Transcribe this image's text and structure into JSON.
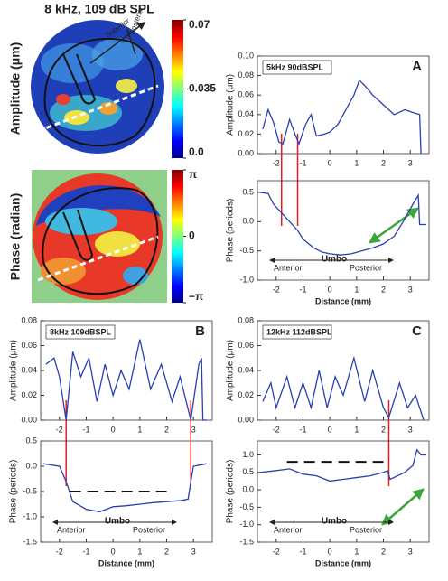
{
  "chart_data": [
    {
      "type": "image",
      "title": "8 kHz, 109 dB SPL",
      "y_label": "Amplitude (μm)",
      "annotations": [
        "Superior",
        "Posterior"
      ],
      "clim": [
        0,
        0.07
      ],
      "colorbar_ticks": [
        {
          "value": 0,
          "label": "0.0"
        },
        0.035,
        0.07
      ]
    },
    {
      "type": "image",
      "y_label": "Phase (radian)",
      "clim": [
        -3.14159,
        3.14159
      ],
      "colorbar_ticks": [
        {
          "value": -3.14159,
          "label": "−π"
        },
        0,
        {
          "value": 3.14159,
          "label": "π"
        }
      ]
    },
    {
      "type": "line",
      "panel_label": "A",
      "legend_text": "5kHz 90dBSPL",
      "y_label": "Amplitude (μm)",
      "color": "#2a3fb0",
      "x": [
        -2.5,
        -2.3,
        -2.1,
        -1.9,
        -1.75,
        -1.5,
        -1.3,
        -1.15,
        -0.9,
        -0.7,
        -0.5,
        -0.2,
        0,
        0.3,
        0.6,
        0.9,
        1.1,
        1.3,
        1.6,
        2.0,
        2.4,
        2.8,
        3.1,
        3.35,
        3.4
      ],
      "values": [
        0.025,
        0.045,
        0.032,
        0.012,
        0.01,
        0.035,
        0.02,
        0.01,
        0.03,
        0.04,
        0.018,
        0.02,
        0.022,
        0.03,
        0.045,
        0.06,
        0.075,
        0.07,
        0.06,
        0.05,
        0.04,
        0.045,
        0.042,
        0.04,
        0.0
      ],
      "xlim": [
        -2.7,
        3.7
      ],
      "xticks": [
        -2,
        -1,
        0,
        1,
        2,
        3
      ],
      "ylim": [
        0,
        0.1
      ],
      "yticks": [
        {
          "value": 0,
          "label": "0.00"
        },
        0.02,
        0.04,
        0.06,
        0.08,
        {
          "value": 0.1,
          "label": "0.10"
        }
      ],
      "vlines": [
        -1.8,
        -1.2
      ],
      "vline_color": "#e02020"
    },
    {
      "type": "line",
      "y_label": "Phase (periods)",
      "x_label": "Distance (mm)",
      "color": "#2a3fb0",
      "annotations": [
        "Anterior",
        "Umbo",
        "Posterior"
      ],
      "x": [
        -2.6,
        -2.3,
        -2.1,
        -1.8,
        -1.5,
        -1.2,
        -1,
        -0.6,
        -0.3,
        0,
        0.4,
        0.8,
        1.2,
        1.6,
        2.0,
        2.4,
        2.8,
        3.1,
        3.3,
        3.35,
        3.6
      ],
      "values": [
        0.5,
        0.48,
        0.3,
        0.15,
        0.0,
        -0.15,
        -0.3,
        -0.45,
        -0.52,
        -0.55,
        -0.57,
        -0.55,
        -0.5,
        -0.45,
        -0.38,
        -0.25,
        0.05,
        0.3,
        0.45,
        -0.05,
        -0.05
      ],
      "xlim": [
        -2.7,
        3.7
      ],
      "xticks": [
        -2,
        -1,
        0,
        1,
        2,
        3
      ],
      "ylim": [
        -1.0,
        0.7
      ],
      "yticks": [
        {
          "value": -1,
          "label": "-1.0"
        },
        -0.5,
        {
          "value": 0,
          "label": "0.0"
        },
        0.5
      ]
    },
    {
      "type": "line",
      "panel_label": "B",
      "legend_text": "8kHz 109dBSPL",
      "y_label": "Amplitude (μm)",
      "color": "#2a3fb0",
      "x": [
        -2.5,
        -2.2,
        -2.0,
        -1.75,
        -1.5,
        -1.2,
        -0.9,
        -0.6,
        -0.3,
        0,
        0.3,
        0.6,
        1.0,
        1.4,
        1.8,
        2.2,
        2.5,
        2.9,
        3.2,
        3.3,
        3.35,
        3.5
      ],
      "values": [
        0.045,
        0.05,
        0.035,
        0,
        0.055,
        0.035,
        0.05,
        0.015,
        0.045,
        0.02,
        0.04,
        0.025,
        0.065,
        0.025,
        0.045,
        0.015,
        0.035,
        0,
        0.045,
        0.05,
        0,
        0
      ],
      "xlim": [
        -2.7,
        3.7
      ],
      "xticks": [
        -2,
        -1,
        0,
        1,
        2,
        3
      ],
      "ylim": [
        0,
        0.08
      ],
      "yticks": [
        {
          "value": 0,
          "label": "0.00"
        },
        0.02,
        0.04,
        0.06,
        0.08
      ],
      "vlines": [
        -1.75,
        2.9
      ],
      "vline_color": "#e02020"
    },
    {
      "type": "line",
      "y_label": "Phase (periods)",
      "x_label": "Distance (mm)",
      "color": "#2a3fb0",
      "annotations": [
        "Anterior",
        "Umbo",
        "Posterior"
      ],
      "x": [
        -2.6,
        -2.0,
        -1.75,
        -1.5,
        -1.0,
        -0.5,
        0,
        0.5,
        1.0,
        1.5,
        2.0,
        2.5,
        2.8,
        2.9,
        3.0,
        3.5
      ],
      "values": [
        0.05,
        0,
        -0.3,
        -0.7,
        -0.85,
        -0.9,
        -0.8,
        -0.78,
        -0.75,
        -0.72,
        -0.7,
        -0.68,
        -0.65,
        -0.3,
        0.0,
        0.05
      ],
      "xlim": [
        -2.7,
        3.7
      ],
      "xticks": [
        -2,
        -1,
        0,
        1,
        2,
        3
      ],
      "ylim": [
        -1.5,
        0.5
      ],
      "yticks": [
        {
          "value": -1.5,
          "label": "-1.5"
        },
        {
          "value": -1,
          "label": "-1.0"
        },
        -0.5,
        {
          "value": 0,
          "label": "0.0"
        },
        0.5
      ],
      "reference_level": -0.5,
      "reference_x": [
        -1.6,
        2.0
      ]
    },
    {
      "type": "line",
      "panel_label": "C",
      "legend_text": "12kHz 112dBSPL",
      "y_label": "Amplitude (μm)",
      "color": "#2a3fb0",
      "x": [
        -2.5,
        -2.2,
        -2.0,
        -1.6,
        -1.3,
        -1.0,
        -0.7,
        -0.4,
        -0.1,
        0.2,
        0.5,
        0.9,
        1.3,
        1.6,
        2.0,
        2.2,
        2.6,
        2.9,
        3.2,
        3.5
      ],
      "values": [
        0.015,
        0.03,
        0.01,
        0.035,
        0.01,
        0.03,
        0.01,
        0.04,
        0.01,
        0.035,
        0.02,
        0.05,
        0.015,
        0.04,
        0.01,
        0.002,
        0.03,
        0.01,
        0.02,
        0
      ],
      "xlim": [
        -2.7,
        3.7
      ],
      "xticks": [
        -2,
        -1,
        0,
        1,
        2,
        3
      ],
      "ylim": [
        0,
        0.08
      ],
      "yticks": [
        {
          "value": 0,
          "label": "0.00"
        },
        0.02,
        0.04,
        0.06,
        0.08
      ],
      "vlines": [
        2.2
      ],
      "vline_color": "#e02020"
    },
    {
      "type": "line",
      "y_label": "Phase (periods)",
      "x_label": "Distance (mm)",
      "color": "#2a3fb0",
      "annotations": [
        "Anterior",
        "Umbo",
        "Posterior"
      ],
      "x": [
        -2.6,
        -2.0,
        -1.5,
        -1.0,
        -0.5,
        0,
        0.5,
        1.0,
        1.5,
        2.0,
        2.15,
        2.25,
        2.8,
        3.1,
        3.25,
        3.4,
        3.6
      ],
      "values": [
        0.5,
        0.55,
        0.6,
        0.45,
        0.4,
        0.25,
        0.3,
        0.35,
        0.4,
        0.5,
        0.55,
        0.3,
        0.5,
        0.7,
        1.15,
        1.0,
        1.0
      ],
      "xlim": [
        -2.7,
        3.7
      ],
      "xticks": [
        -2,
        -1,
        0,
        1,
        2,
        3
      ],
      "ylim": [
        -1.5,
        1.4
      ],
      "yticks": [
        {
          "value": -1.5,
          "label": "-1.5"
        },
        {
          "value": -1,
          "label": "-1.0"
        },
        -0.5,
        {
          "value": 0,
          "label": "0.0"
        },
        0.5,
        {
          "value": 1,
          "label": "1.0"
        }
      ],
      "reference_level": 0.8,
      "reference_x": [
        -1.6,
        2.0
      ]
    }
  ]
}
